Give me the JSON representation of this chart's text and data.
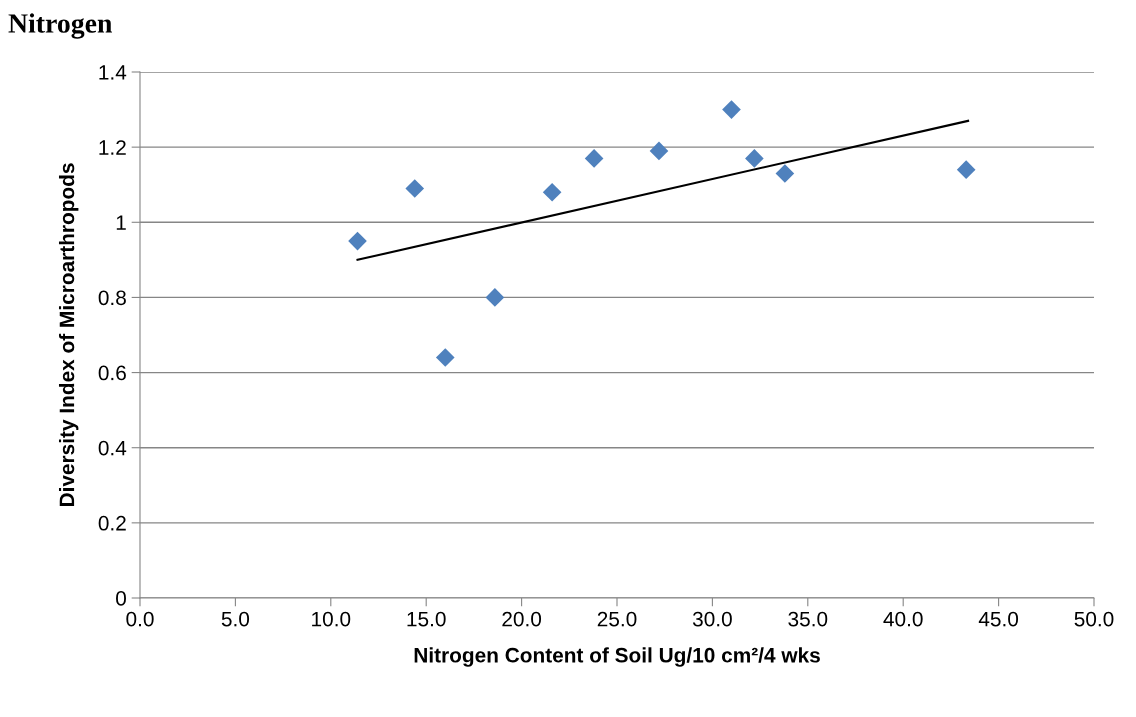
{
  "chart_data": {
    "type": "scatter",
    "title": "Nitrogen",
    "xlabel": "Nitrogen Content of Soil Ug/10 cm²/4 wks",
    "ylabel": "Diversity Index of Microarthropods",
    "x": [
      11.4,
      14.4,
      16.0,
      18.6,
      21.6,
      23.8,
      27.2,
      31.0,
      32.2,
      33.8,
      43.3
    ],
    "series": [
      {
        "type": "scatter",
        "color": "#4f81bd",
        "marker": "diamond",
        "values": [
          0.95,
          1.09,
          0.64,
          0.8,
          1.08,
          1.17,
          1.19,
          1.3,
          1.17,
          1.13,
          1.14
        ]
      },
      {
        "type": "line",
        "color": "#000000",
        "marker": "none",
        "line_style": "solid",
        "x": [
          11.4,
          43.4
        ],
        "values": [
          0.9,
          1.27
        ]
      }
    ],
    "xlim": [
      0.0,
      50.0
    ],
    "xticks": [
      {
        "value": 0,
        "label": "0.0"
      },
      {
        "value": 5,
        "label": "5.0"
      },
      {
        "value": 10,
        "label": "10.0"
      },
      {
        "value": 15,
        "label": "15.0"
      },
      {
        "value": 20,
        "label": "20.0"
      },
      {
        "value": 25,
        "label": "25.0"
      },
      {
        "value": 30,
        "label": "30.0"
      },
      {
        "value": 35,
        "label": "35.0"
      },
      {
        "value": 40,
        "label": "40.0"
      },
      {
        "value": 45,
        "label": "45.0"
      },
      {
        "value": 50,
        "label": "50.0"
      }
    ],
    "ylim": [
      0,
      1.4
    ],
    "yticks": [
      0,
      0.2,
      0.4,
      0.6,
      0.8,
      1,
      1.2,
      1.4
    ],
    "grid": "y",
    "legend": false
  }
}
